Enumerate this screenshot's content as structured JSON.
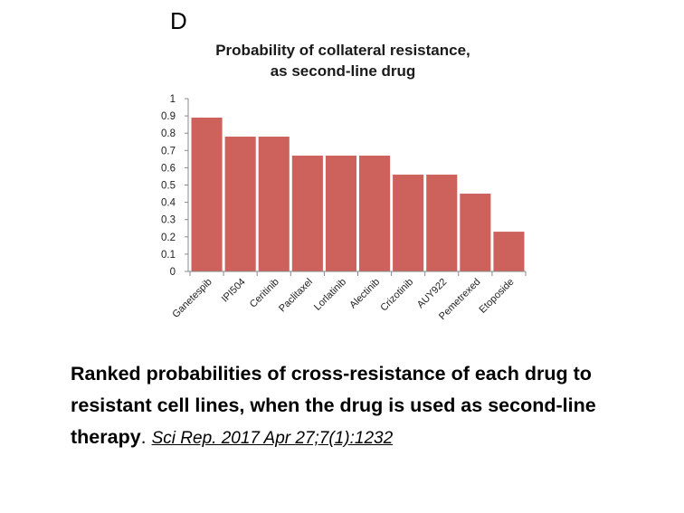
{
  "panel_label": "D",
  "chart_data": {
    "type": "bar",
    "title": "Probability of collateral resistance,",
    "subtitle": "as second-line drug",
    "categories": [
      "Ganetespib",
      "IPI504",
      "Ceritinib",
      "Paclitaxel",
      "Lorlatinib",
      "Alectinib",
      "Crizotinib",
      "AUY922",
      "Pemetrexed",
      "Etoposide"
    ],
    "values": [
      0.89,
      0.78,
      0.78,
      0.67,
      0.67,
      0.67,
      0.56,
      0.56,
      0.45,
      0.23
    ],
    "yticks": [
      "0",
      "0.1",
      "0.2",
      "0.3",
      "0.4",
      "0.5",
      "0.6",
      "0.7",
      "0.8",
      "0.9",
      "1"
    ],
    "ylim": [
      0,
      1
    ],
    "xlabel": "",
    "ylabel": "",
    "bar_color": "#cd615c"
  },
  "caption": {
    "text": "Ranked probabilities of cross-resistance of each drug to resistant cell lines, when the drug is used as second-line therapy",
    "period": ". ",
    "citation": "Sci Rep. 2017 Apr 27;7(1):1232"
  }
}
